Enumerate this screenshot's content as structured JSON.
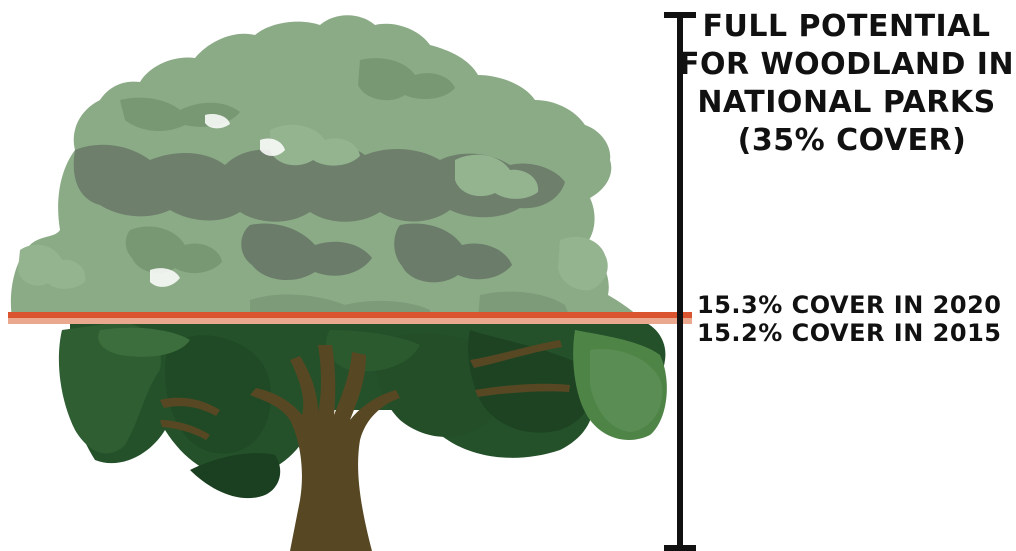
{
  "potential": {
    "lines": [
      "FULL POTENTIAL",
      "FOR WOODLAND IN",
      "NATIONAL PARKS",
      "(35% COVER)"
    ]
  },
  "cover_2020": "15.3% COVER IN 2020",
  "cover_2015": "15.2% COVER IN 2015",
  "colors": {
    "canopy_upper_light": "#8bab86",
    "canopy_upper_mid": "#779873",
    "canopy_upper_grey": "#6b7d6a",
    "canopy_lower_dark": "#24512a",
    "canopy_lower_mid": "#3b6d3d",
    "canopy_lower_light": "#5a8d53",
    "trunk": "#574823",
    "line_2020": "#d9542f",
    "line_2015": "#eaa98e",
    "scale_bar": "#111111"
  }
}
